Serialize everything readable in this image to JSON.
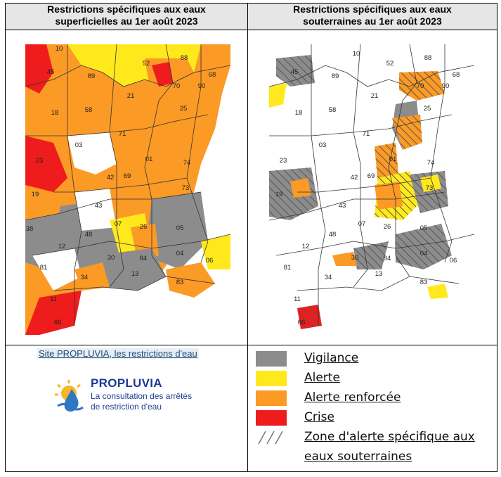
{
  "headers": {
    "left_line1": "Restrictions spécifiques aux eaux",
    "left_line2": "superficielles au 1er août 2023",
    "right_line1": "Restrictions spécifiques aux eaux",
    "right_line2": "souterraines au 1er août 2023"
  },
  "colors": {
    "vigilance": "#8c8c8c",
    "alerte": "#ffe91c",
    "alerte_renforcee": "#fb9a25",
    "crise": "#ee1c1c",
    "none": "#ffffff",
    "border": "#333333"
  },
  "map_left": {
    "labels": [
      "10",
      "45",
      "89",
      "52",
      "88",
      "68",
      "70",
      "90",
      "21",
      "58",
      "25",
      "18",
      "71",
      "03",
      "01",
      "74",
      "23",
      "69",
      "42",
      "73",
      "19",
      "43",
      "07",
      "26",
      "05",
      "48",
      "12",
      "38",
      "84",
      "04",
      "06",
      "81",
      "34",
      "13",
      "83",
      "11",
      "66",
      "30"
    ]
  },
  "map_right": {
    "labels": [
      "10",
      "45",
      "89",
      "52",
      "88",
      "68",
      "70",
      "90",
      "21",
      "58",
      "25",
      "18",
      "71",
      "03",
      "01",
      "74",
      "23",
      "69",
      "42",
      "73",
      "19",
      "43",
      "07",
      "26",
      "05",
      "48",
      "12",
      "84",
      "04",
      "06",
      "81",
      "34",
      "13",
      "83",
      "11",
      "66",
      "30"
    ]
  },
  "source_link": "Site PROPLUVIA, les restrictions d'eau",
  "logo": {
    "name": "PROPLUVIA",
    "subtitle_line1": "La consultation des arrêtés",
    "subtitle_line2": "de restriction d'eau"
  },
  "legend": {
    "vigilance": "Vigilance",
    "alerte": "Alerte",
    "alerte_renforcee": "Alerte renforcée",
    "crise": "Crise",
    "zone_line1": "Zone d'alerte spécifique aux",
    "zone_line2": "eaux souterraines"
  }
}
